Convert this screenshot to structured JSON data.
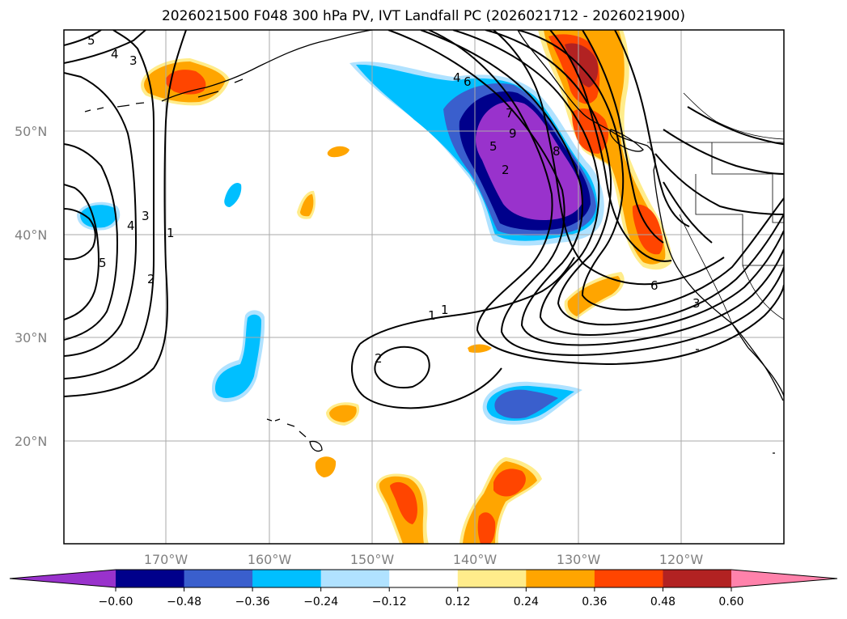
{
  "title": "2026021500 F048 300 hPa PV, IVT Landfall PC (2026021712 - 2026021900)",
  "lat_labels": [
    "50°N",
    "40°N",
    "30°N",
    "20°N"
  ],
  "lon_labels": [
    "170°W",
    "160°W",
    "150°W",
    "140°W",
    "130°W",
    "120°W"
  ],
  "colorbar": {
    "ticks": [
      "−0.60",
      "−0.48",
      "−0.36",
      "−0.24",
      "−0.12",
      "0.12",
      "0.24",
      "0.36",
      "0.48",
      "0.60"
    ],
    "colors": [
      "#9932CC",
      "#00008B",
      "#3A5FCD",
      "#00BFFF",
      "#B0E2FF",
      "#FFFFFF",
      "#FFEC8B",
      "#FFA500",
      "#FF4500",
      "#B22222",
      "#FF82AB"
    ]
  },
  "contour_labels": [
    "5",
    "4",
    "3",
    "4",
    "3",
    "1",
    "5",
    "2",
    "1",
    "2",
    "4",
    "6",
    "7",
    "8",
    "9",
    "2",
    "1",
    "6",
    "5",
    "3"
  ]
}
